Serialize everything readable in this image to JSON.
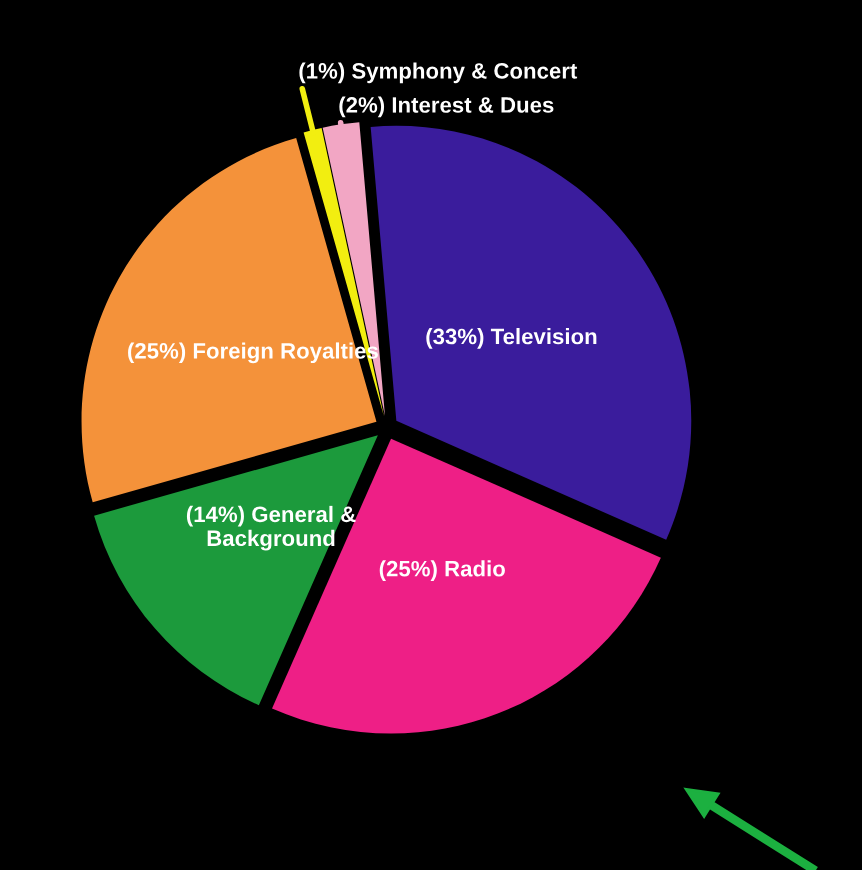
{
  "chart_data": {
    "type": "pie",
    "categories": [
      "Television",
      "Radio",
      "General &\nBackground",
      "Foreign Royalties",
      "Symphony & Concert",
      "Interest & Dues"
    ],
    "values": [
      33,
      25,
      14,
      25,
      1,
      2
    ],
    "value_labels": [
      "(33%)",
      "(25%)",
      "(14%)",
      "(25%)",
      "(1%)",
      "(2%)"
    ],
    "colors": [
      "#3a1c9c",
      "#ee1f86",
      "#1c9a3c",
      "#f4923a",
      "#f2ee10",
      "#f2a6c4"
    ]
  }
}
